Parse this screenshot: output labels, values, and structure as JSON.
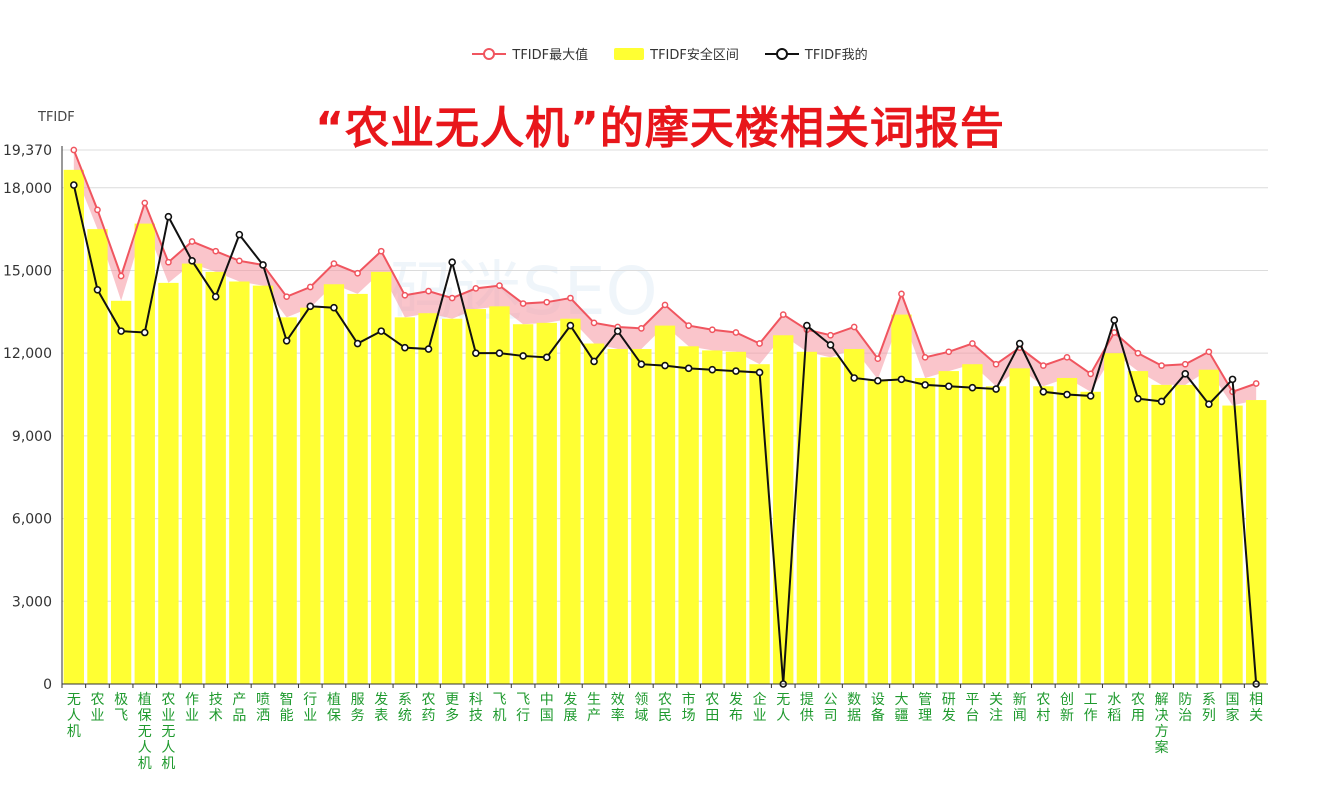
{
  "chart_data": {
    "type": "bar",
    "title": "“农业无人机”的摩天楼相关词报告",
    "ylabel": "TFIDF",
    "ylim": [
      0,
      19370
    ],
    "yticks": [
      0,
      3000,
      6000,
      9000,
      12000,
      15000,
      18000,
      19370
    ],
    "ytick_labels": [
      "0",
      "3,000",
      "6,000",
      "9,000",
      "12,000",
      "15,000",
      "18,000",
      "19,370"
    ],
    "legend_position": "top-center",
    "grid": true,
    "categories": [
      "无人机",
      "农业",
      "极飞",
      "植保无人机",
      "农业无人机",
      "作业",
      "技术",
      "产品",
      "喷洒",
      "智能",
      "行业",
      "植保",
      "服务",
      "发表",
      "系统",
      "农药",
      "更多",
      "科技",
      "飞机",
      "飞行",
      "中国",
      "发展",
      "生产",
      "效率",
      "领域",
      "农民",
      "市场",
      "农田",
      "发布",
      "企业",
      "无人",
      "提供",
      "公司",
      "数据",
      "设备",
      "大疆",
      "管理",
      "研发",
      "平台",
      "关注",
      "新闻",
      "农村",
      "创新",
      "工作",
      "水稻",
      "农用",
      "解决方案",
      "防治",
      "系列",
      "国家",
      "相关"
    ],
    "series": [
      {
        "name": "TFIDF最大值",
        "type": "line",
        "color": "#f0555f",
        "values": [
          19370,
          17200,
          14800,
          17450,
          15300,
          16050,
          15700,
          15350,
          15200,
          14050,
          14400,
          15250,
          14900,
          15700,
          14100,
          14250,
          14000,
          14350,
          14450,
          13800,
          13850,
          14000,
          13100,
          12950,
          12900,
          13750,
          13000,
          12850,
          12750,
          12350,
          13400,
          12850,
          12650,
          12950,
          11800,
          14150,
          11850,
          12050,
          12350,
          11600,
          12200,
          11550,
          11850,
          11250,
          12750,
          12000,
          11550,
          11600,
          12050,
          10600,
          10900
        ]
      },
      {
        "name": "TFIDF安全区间",
        "type": "bar",
        "color": "#ffff33",
        "values": [
          18650,
          16500,
          13900,
          16700,
          14550,
          15250,
          14950,
          14600,
          14450,
          13300,
          13650,
          14500,
          14150,
          14950,
          13300,
          13450,
          13250,
          13600,
          13700,
          13050,
          13100,
          13250,
          12350,
          12150,
          12150,
          13000,
          12250,
          12100,
          12050,
          11600,
          12650,
          12050,
          11850,
          12150,
          11050,
          13400,
          11100,
          11350,
          11600,
          10800,
          11450,
          10800,
          11100,
          10600,
          12000,
          11350,
          10850,
          10850,
          11400,
          10100,
          10300
        ]
      },
      {
        "name": "TFIDF我的",
        "type": "line",
        "color": "#111111",
        "values": [
          18100,
          14300,
          12800,
          12750,
          16950,
          15350,
          14050,
          16300,
          15200,
          12450,
          13700,
          13650,
          12350,
          12800,
          12200,
          12150,
          15300,
          12000,
          12000,
          11900,
          11850,
          13000,
          11700,
          12800,
          11600,
          11550,
          11450,
          11400,
          11350,
          11300,
          0,
          13000,
          12300,
          11100,
          11000,
          11050,
          10850,
          10800,
          10750,
          10700,
          12350,
          10600,
          10500,
          10450,
          13200,
          10350,
          10250,
          11250,
          10150,
          11050,
          0
        ]
      }
    ]
  },
  "watermark": "码迷SEO"
}
